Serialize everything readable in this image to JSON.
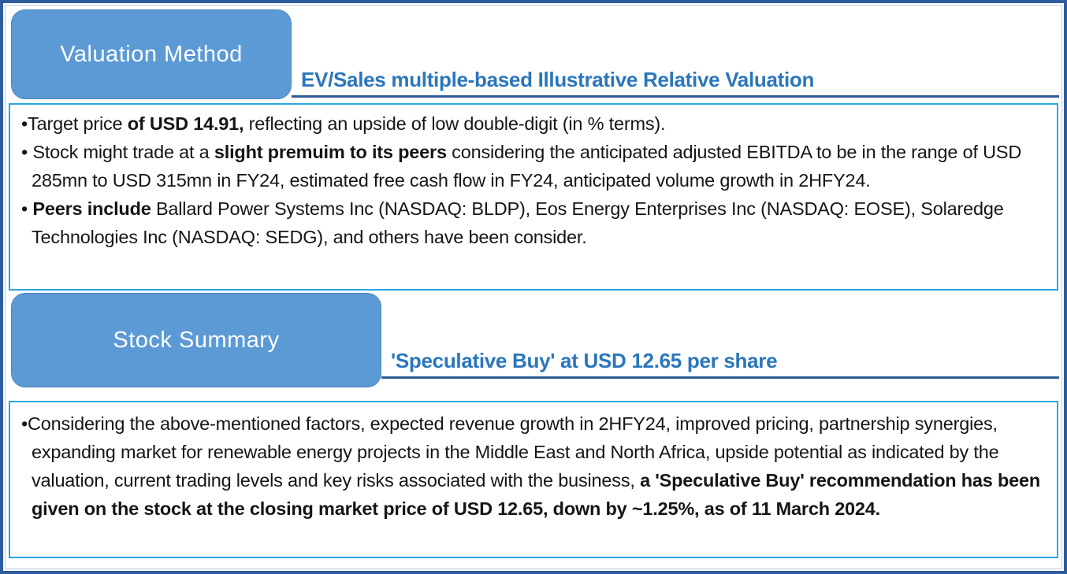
{
  "colors": {
    "tab_fill": "#5b9ad4",
    "tab_text": "#ffffff",
    "heading_text": "#2a76bc",
    "rule_dark": "#2f5b96",
    "frame_border": "#2e5c9c",
    "box_border": "#29a6e0",
    "body_text": "#151515"
  },
  "sections": [
    {
      "tab_label": "Valuation Method",
      "heading": "EV/Sales multiple-based Illustrative Relative Valuation",
      "bullets": [
        {
          "segments": [
            {
              "text": "Target price ",
              "bold": false
            },
            {
              "text": "of USD 14.91,",
              "bold": true
            },
            {
              "text": " reflecting an upside of low double-digit (in % terms).",
              "bold": false
            }
          ]
        },
        {
          "segments": [
            {
              "text": " Stock might trade at a ",
              "bold": false
            },
            {
              "text": "slight premuim to its peers",
              "bold": true
            },
            {
              "text": " considering the anticipated adjusted EBITDA to be in the range of USD 285mn to USD 315mn in FY24, estimated free cash flow in FY24, anticipated volume growth in 2HFY24.",
              "bold": false
            }
          ]
        },
        {
          "segments": [
            {
              "text": " ",
              "bold": false
            },
            {
              "text": "Peers include",
              "bold": true
            },
            {
              "text": " Ballard Power Systems Inc (NASDAQ: BLDP), Eos Energy Enterprises Inc (NASDAQ: EOSE), Solaredge Technologies Inc (NASDAQ: SEDG), and others have been consider.",
              "bold": false
            }
          ]
        }
      ]
    },
    {
      "tab_label": "Stock Summary",
      "heading": "'Speculative Buy' at USD 12.65 per share",
      "bullets": [
        {
          "segments": [
            {
              "text": "Considering the above-mentioned factors, expected revenue growth in 2HFY24, improved pricing, partnership synergies, expanding market for renewable energy projects in the Middle East and North Africa, upside potential as indicated by the valuation, current trading levels and key risks associated with the business, ",
              "bold": false
            },
            {
              "text": "a 'Speculative Buy' recommendation has been given on the stock at the closing market price of USD 12.65, down by ~1.25%, as of 11 March 2024.",
              "bold": true
            }
          ]
        }
      ]
    }
  ]
}
